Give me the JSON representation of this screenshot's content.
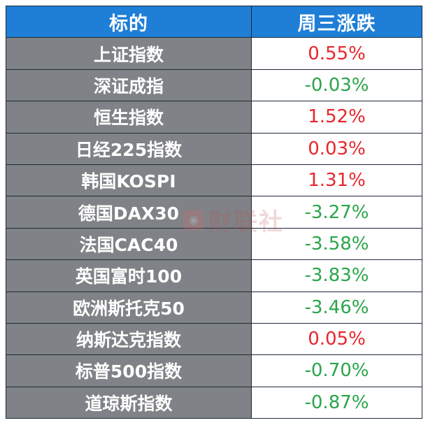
{
  "table": {
    "headers": [
      "标的",
      "周三涨跌"
    ],
    "rows": [
      {
        "name": "上证指数",
        "change": "0.55%",
        "direction": "up"
      },
      {
        "name": "深证成指",
        "change": "-0.03%",
        "direction": "down"
      },
      {
        "name": "恒生指数",
        "change": "1.52%",
        "direction": "up"
      },
      {
        "name": "日经225指数",
        "change": "0.03%",
        "direction": "up"
      },
      {
        "name": "韩国KOSPI",
        "change": "1.31%",
        "direction": "up"
      },
      {
        "name": "德国DAX30",
        "change": "-3.27%",
        "direction": "down"
      },
      {
        "name": "法国CAC40",
        "change": "-3.58%",
        "direction": "down"
      },
      {
        "name": "英国富时100",
        "change": "-3.83%",
        "direction": "down"
      },
      {
        "name": "欧洲斯托克50",
        "change": "-3.46%",
        "direction": "down"
      },
      {
        "name": "纳斯达克指数",
        "change": "0.05%",
        "direction": "up"
      },
      {
        "name": "标普500指数",
        "change": "-0.70%",
        "direction": "down"
      },
      {
        "name": "道琼斯指数",
        "change": "-0.87%",
        "direction": "down"
      }
    ]
  },
  "watermark": {
    "text": "财联社",
    "icon": "cls-logo-icon"
  },
  "colors": {
    "header_bg": "#1f7ed6",
    "name_bg": "#7f8286",
    "up": "#e8262c",
    "down": "#2aa54a"
  }
}
